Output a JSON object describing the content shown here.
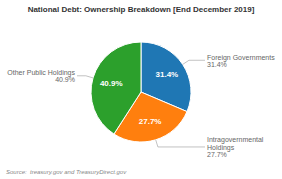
{
  "chart_data": {
    "type": "pie",
    "title": "National Debt: Ownership Breakdown [End December 2019]",
    "categories": [
      "Foreign Governments",
      "Intragovernmental\nHoldings",
      "Other Public Holdings"
    ],
    "values": [
      31.4,
      27.7,
      40.9
    ],
    "value_labels": [
      "31.4%",
      "27.7%",
      "40.9%"
    ],
    "data_labels": true,
    "annotations": [
      "Source:  treasury.gov and TreasuryDirect.gov"
    ]
  }
}
